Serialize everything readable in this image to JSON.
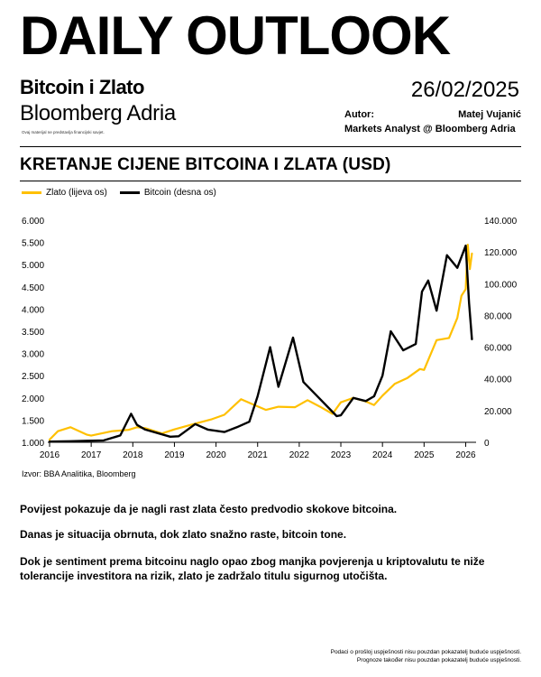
{
  "header": {
    "headline": "DAILY OUTLOOK",
    "subtitle": "Bitcoin i Zlato",
    "brand": "Bloomberg Adria",
    "disclaimer_top": "Ovaj materijal ne predstavlja financijski savjet.",
    "date": "26/02/2025",
    "author_label": "Autor:",
    "author_name": "Matej Vujanić",
    "author_role": "Markets Analyst @ Bloomberg Adria"
  },
  "chart_title": "KRETANJE CIJENE BITCOINA I ZLATA  (USD)",
  "chart_data": {
    "type": "line",
    "legend_placement": "top-left",
    "grid": false,
    "x_ticks": [
      "2016",
      "2017",
      "2018",
      "2019",
      "2020",
      "2021",
      "2022",
      "2023",
      "2024",
      "2025",
      "2026"
    ],
    "xlim": [
      2016,
      2026.25
    ],
    "left_axis": {
      "ylim": [
        1000,
        6000
      ],
      "tick_labels": [
        "6.000",
        "5.500",
        "5.000",
        "4.500",
        "4.000",
        "3.500",
        "3.000",
        "2.500",
        "2.000",
        "1.500",
        "1.000"
      ],
      "tick_values": [
        6000,
        5500,
        5000,
        4500,
        4000,
        3500,
        3000,
        2500,
        2000,
        1500,
        1000
      ]
    },
    "right_axis": {
      "ylim": [
        0,
        140000
      ],
      "tick_labels": [
        "140.000",
        "120.000",
        "100.000",
        "80.000",
        "60.000",
        "40.000",
        "20.000",
        "0"
      ],
      "tick_values": [
        140000,
        120000,
        100000,
        80000,
        60000,
        40000,
        20000,
        0
      ]
    },
    "series": [
      {
        "name": "Zlato (lijeva os)",
        "axis": "left",
        "color": "#FFC000",
        "x": [
          2016.0,
          2016.2,
          2016.5,
          2016.9,
          2017.0,
          2017.5,
          2017.9,
          2018.1,
          2018.3,
          2018.7,
          2019.0,
          2019.5,
          2019.9,
          2020.2,
          2020.6,
          2020.9,
          2021.2,
          2021.5,
          2021.9,
          2022.2,
          2022.5,
          2022.8,
          2023.0,
          2023.3,
          2023.6,
          2023.8,
          2024.0,
          2024.3,
          2024.6,
          2024.9,
          2025.0,
          2025.3,
          2025.6,
          2025.8,
          2025.9,
          2026.0,
          2026.05,
          2026.1,
          2026.15
        ],
        "y": [
          1060,
          1250,
          1340,
          1170,
          1150,
          1250,
          1280,
          1340,
          1320,
          1200,
          1290,
          1420,
          1520,
          1620,
          1970,
          1850,
          1730,
          1800,
          1790,
          1950,
          1800,
          1640,
          1900,
          2000,
          1920,
          1840,
          2050,
          2320,
          2450,
          2650,
          2630,
          3300,
          3350,
          3800,
          4300,
          4450,
          5450,
          4900,
          5250
        ]
      },
      {
        "name": "Bitcoin (desna os)",
        "axis": "right",
        "color": "#000000",
        "x": [
          2016.0,
          2016.5,
          2016.9,
          2017.3,
          2017.7,
          2017.96,
          2018.1,
          2018.3,
          2018.9,
          2019.1,
          2019.5,
          2019.8,
          2020.2,
          2020.5,
          2020.8,
          2021.0,
          2021.3,
          2021.5,
          2021.85,
          2022.1,
          2022.4,
          2022.9,
          2023.0,
          2023.3,
          2023.6,
          2023.8,
          2024.0,
          2024.2,
          2024.5,
          2024.8,
          2024.95,
          2025.1,
          2025.3,
          2025.55,
          2025.8,
          2026.0,
          2026.08,
          2026.15
        ],
        "y": [
          430,
          680,
          950,
          1200,
          4300,
          18000,
          11000,
          8000,
          3500,
          3800,
          11500,
          8000,
          6500,
          9500,
          13000,
          29000,
          60000,
          35000,
          66000,
          38000,
          30000,
          16500,
          17000,
          28000,
          26000,
          29000,
          42000,
          70000,
          58000,
          62000,
          95000,
          102000,
          83000,
          118000,
          110000,
          124000,
          88000,
          65000
        ]
      }
    ]
  },
  "source": "Izvor: BBA Analitika, Bloomberg",
  "paragraphs": [
    "Povijest pokazuje da je nagli rast zlata često predvodio skokove bitcoina.",
    "Danas je situacija obrnuta, dok zlato snažno raste, bitcoin tone.",
    "Dok je sentiment prema bitcoinu naglo opao zbog manjka povjerenja u kriptovalutu te niže tolerancije investitora na rizik, zlato je zadržalo titulu sigurnog utočišta."
  ],
  "footer": {
    "line1": "Podaci o prošloj uspješnosti nisu pouzdan pokazatelj buduće uspješnosti.",
    "line2": "Prognoze također nisu pouzdan pokazatelj buduće uspješnosti."
  }
}
